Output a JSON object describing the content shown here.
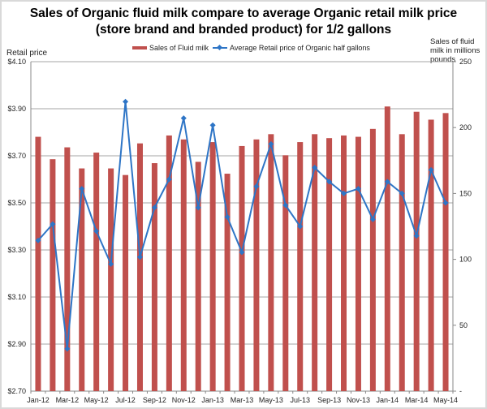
{
  "chart_data": {
    "type": "bar+line",
    "title_line1": "Sales of Organic fluid milk compare to average Organic retail milk price",
    "title_line2": "(store brand and branded product) for 1/2 gallons",
    "ylabel_left": "Retail price",
    "ylabel_right_lines": [
      "Sales of fluid",
      "milk in millions",
      "pounds"
    ],
    "left_axis": {
      "min": 2.7,
      "max": 4.1,
      "step": 0.2,
      "ticks": [
        "$2.70",
        "$2.90",
        "$3.10",
        "$3.30",
        "$3.50",
        "$3.70",
        "$3.90",
        "$4.10"
      ]
    },
    "right_axis": {
      "min": 0,
      "max": 250,
      "step": 50,
      "ticks": [
        "-",
        "50",
        "100",
        "150",
        "200",
        "250"
      ]
    },
    "grid": true,
    "legend_position": "top",
    "categories": [
      "Jan-12",
      "Feb-12",
      "Mar-12",
      "Apr-12",
      "May-12",
      "Jun-12",
      "Jul-12",
      "Aug-12",
      "Sep-12",
      "Oct-12",
      "Nov-12",
      "Dec-12",
      "Jan-13",
      "Feb-13",
      "Mar-13",
      "Apr-13",
      "May-13",
      "Jun-13",
      "Jul-13",
      "Aug-13",
      "Sep-13",
      "Oct-13",
      "Nov-13",
      "Dec-13",
      "Jan-14",
      "Feb-14",
      "Mar-14",
      "Apr-14",
      "May-14"
    ],
    "x_tick_labels": [
      "Jan-12",
      "Mar-12",
      "May-12",
      "Jul-12",
      "Sep-12",
      "Nov-12",
      "Jan-13",
      "Mar-13",
      "May-13",
      "Jul-13",
      "Sep-13",
      "Nov-13",
      "Jan-14",
      "Mar-14",
      "May-14"
    ],
    "series": [
      {
        "name": "Sales of Fluid milk",
        "type": "bar",
        "axis": "right",
        "color": "#c0504d",
        "values": [
          193,
          176,
          185,
          169,
          181,
          169,
          164,
          188,
          173,
          194,
          191,
          174,
          189,
          165,
          186,
          191,
          195,
          179,
          189,
          195,
          192,
          194,
          193,
          199,
          216,
          195,
          212,
          206,
          211
        ]
      },
      {
        "name": "Average Retail price of Organic half gallons",
        "type": "line",
        "axis": "left",
        "color": "#2e75c6",
        "values": [
          3.34,
          3.41,
          2.88,
          3.56,
          3.38,
          3.24,
          3.93,
          3.27,
          3.48,
          3.6,
          3.86,
          3.48,
          3.83,
          3.44,
          3.29,
          3.57,
          3.75,
          3.49,
          3.4,
          3.65,
          3.59,
          3.54,
          3.56,
          3.43,
          3.59,
          3.54,
          3.36,
          3.64,
          3.5
        ]
      }
    ]
  }
}
